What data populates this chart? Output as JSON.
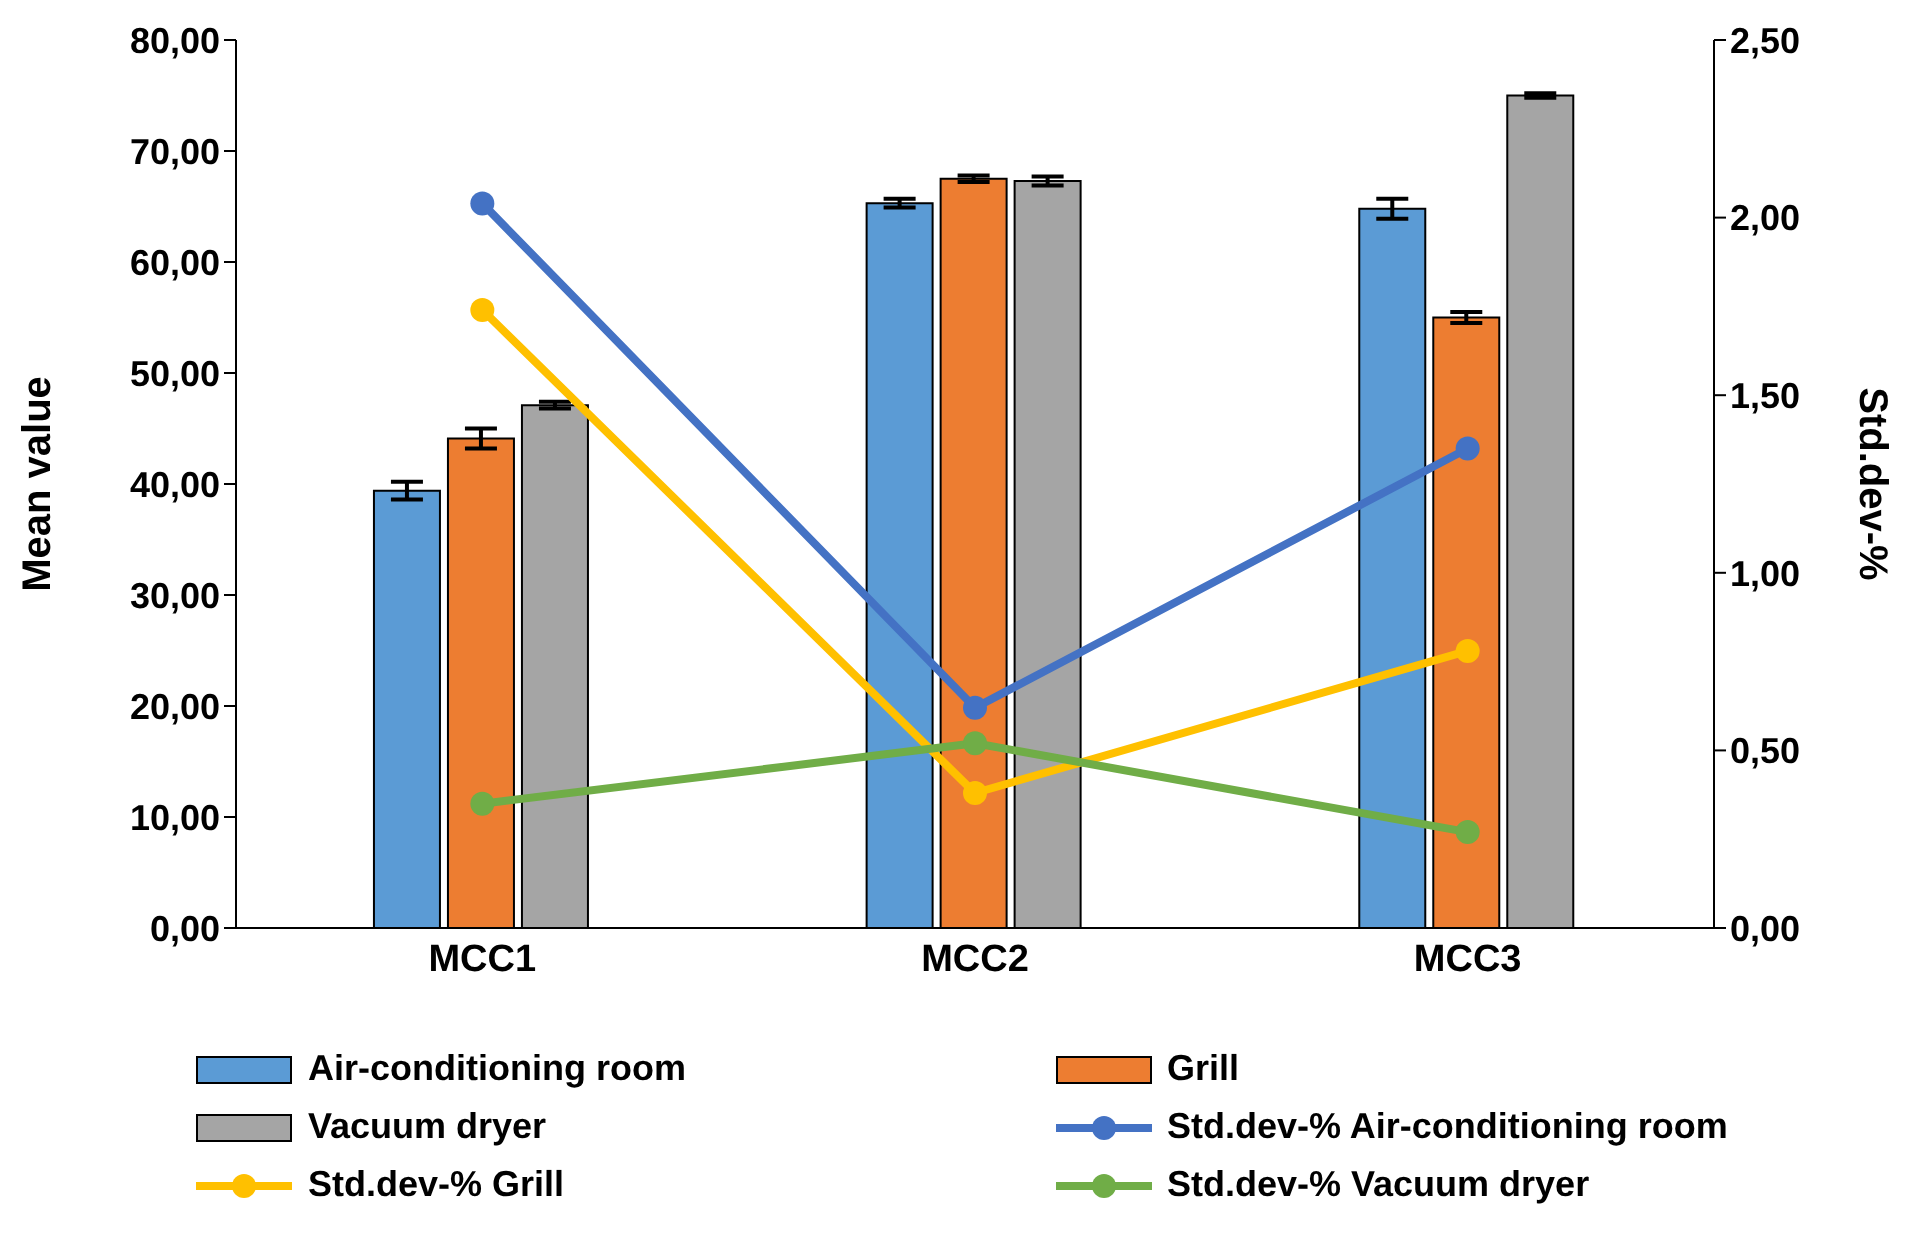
{
  "chart_data": {
    "type": "bar",
    "categories": [
      "MCC1",
      "MCC2",
      "MCC3"
    ],
    "ylabel": "Mean value",
    "y2label": "Std.dev-%",
    "ylim": [
      0,
      80
    ],
    "yticks": [
      {
        "value": 0,
        "label": "0,00"
      },
      {
        "value": 10,
        "label": "10,00"
      },
      {
        "value": 20,
        "label": "20,00"
      },
      {
        "value": 30,
        "label": "30,00"
      },
      {
        "value": 40,
        "label": "40,00"
      },
      {
        "value": 50,
        "label": "50,00"
      },
      {
        "value": 60,
        "label": "60,00"
      },
      {
        "value": 70,
        "label": "70,00"
      },
      {
        "value": 80,
        "label": "80,00"
      }
    ],
    "y2lim": [
      0,
      2.5
    ],
    "y2ticks": [
      {
        "value": 0,
        "label": "0,00"
      },
      {
        "value": 0.5,
        "label": "0,50"
      },
      {
        "value": 1,
        "label": "1,00"
      },
      {
        "value": 1.5,
        "label": "1,50"
      },
      {
        "value": 2,
        "label": "2,00"
      },
      {
        "value": 2.5,
        "label": "2,50"
      }
    ],
    "legend": "bottom",
    "marker": "circle",
    "series": [
      {
        "name": "Air-conditioning room",
        "color": "#5b9bd5",
        "values": [
          39.4,
          65.3,
          64.8
        ],
        "errors": [
          0.8,
          0.4,
          0.9
        ]
      },
      {
        "name": "Grill",
        "color": "#ed7d31",
        "values": [
          44.1,
          67.5,
          55.0
        ],
        "errors": [
          0.9,
          0.3,
          0.5
        ]
      },
      {
        "name": "Vacuum dryer",
        "color": "#a5a5a5",
        "values": [
          47.1,
          67.3,
          75.0
        ],
        "errors": [
          0.3,
          0.4,
          0.2
        ]
      },
      {
        "name": "Std.dev-% Air-conditioning room",
        "type": "line",
        "axis": "y2",
        "color": "#4472c4",
        "values": [
          2.04,
          0.62,
          1.35
        ]
      },
      {
        "name": "Std.dev-% Grill",
        "type": "line",
        "axis": "y2",
        "color": "#ffc000",
        "values": [
          1.74,
          0.38,
          0.78
        ]
      },
      {
        "name": "Std.dev-% Vacuum dryer",
        "type": "line",
        "axis": "y2",
        "color": "#70ad47",
        "values": [
          0.35,
          0.52,
          0.27
        ]
      }
    ]
  }
}
